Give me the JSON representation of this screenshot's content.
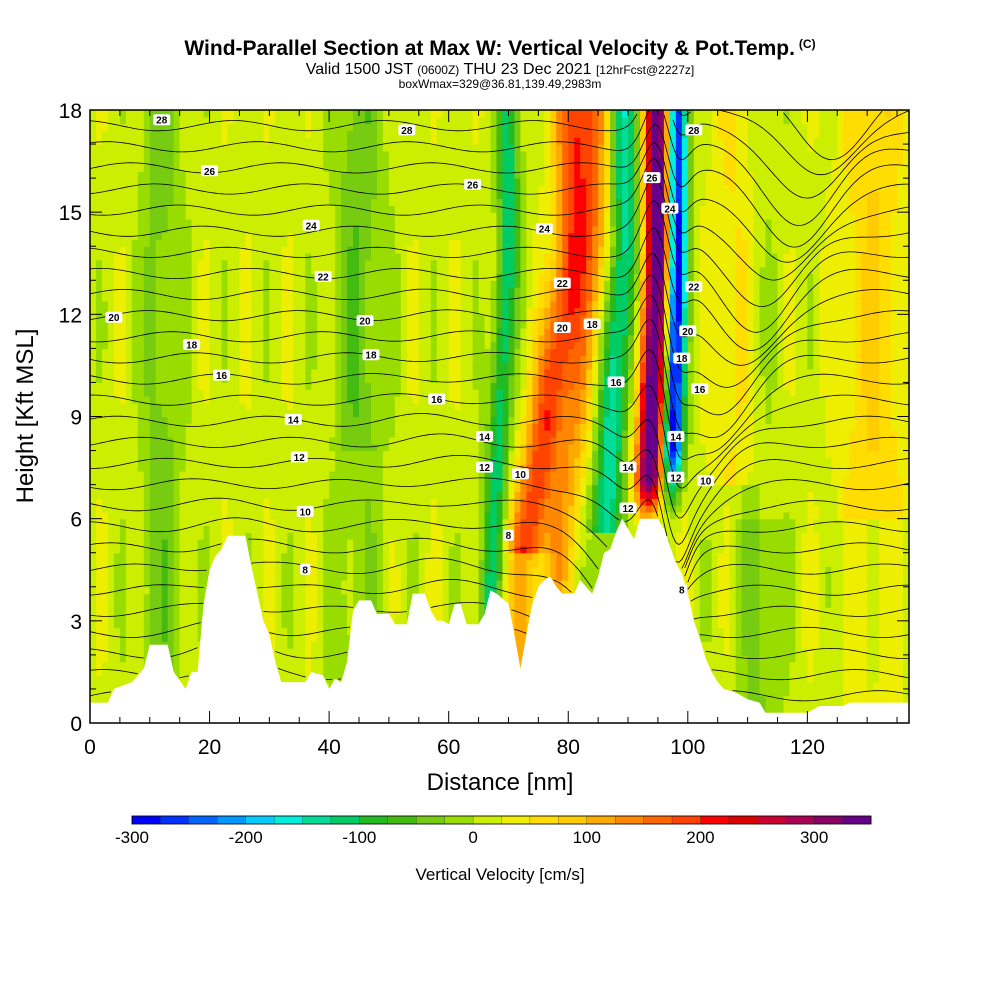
{
  "title": {
    "main": "Wind-Parallel Section at Max W: Vertical Velocity & Pot.Temp.",
    "units_tag": "(C)",
    "valid_prefix": "Valid 1500 JST",
    "valid_utc": "(0600Z)",
    "valid_date": "THU 23 Dec 2021",
    "forecast": "[12hrFcst@2227z]",
    "box": "boxWmax=329@36.81,139.49,2983m"
  },
  "chart_data": {
    "type": "heatmap",
    "xlabel": "Distance [nm]",
    "ylabel": "Height [Kft MSL]",
    "xlim": [
      0,
      137
    ],
    "ylim": [
      0,
      18
    ],
    "x_ticks": [
      0,
      20,
      40,
      60,
      80,
      100,
      120
    ],
    "y_ticks": [
      0,
      3,
      6,
      9,
      12,
      15,
      18
    ],
    "colorbar": {
      "label": "Vertical Velocity [cm/s]",
      "range": [
        -300,
        350
      ],
      "ticks": [
        -300,
        -200,
        -100,
        0,
        100,
        200,
        300
      ],
      "colors": [
        "#0000ff",
        "#0033ff",
        "#0066ff",
        "#0099ff",
        "#00ccff",
        "#00eedd",
        "#00dd99",
        "#00cc66",
        "#22bb22",
        "#44bb11",
        "#77cc11",
        "#99dd00",
        "#ccee00",
        "#eeee00",
        "#ffdd00",
        "#ffcc00",
        "#ffaa00",
        "#ff8800",
        "#ff6600",
        "#ff4400",
        "#ff0000",
        "#dd0000",
        "#cc0033",
        "#aa0055",
        "#880066",
        "#660088"
      ]
    },
    "theta_contour_labels": [
      {
        "x": 12,
        "y": 17.7,
        "text": "28"
      },
      {
        "x": 53,
        "y": 17.4,
        "text": "28"
      },
      {
        "x": 101,
        "y": 17.4,
        "text": "28"
      },
      {
        "x": 20,
        "y": 16.2,
        "text": "26"
      },
      {
        "x": 64,
        "y": 15.8,
        "text": "26"
      },
      {
        "x": 94,
        "y": 16.0,
        "text": "26"
      },
      {
        "x": 37,
        "y": 14.6,
        "text": "24"
      },
      {
        "x": 76,
        "y": 14.5,
        "text": "24"
      },
      {
        "x": 97,
        "y": 15.1,
        "text": "24"
      },
      {
        "x": 39,
        "y": 13.1,
        "text": "22"
      },
      {
        "x": 79,
        "y": 12.9,
        "text": "22"
      },
      {
        "x": 101,
        "y": 12.8,
        "text": "22"
      },
      {
        "x": 4,
        "y": 11.9,
        "text": "20"
      },
      {
        "x": 46,
        "y": 11.8,
        "text": "20"
      },
      {
        "x": 79,
        "y": 11.6,
        "text": "20"
      },
      {
        "x": 100,
        "y": 11.5,
        "text": "20"
      },
      {
        "x": 17,
        "y": 11.1,
        "text": "18"
      },
      {
        "x": 47,
        "y": 10.8,
        "text": "18"
      },
      {
        "x": 84,
        "y": 11.7,
        "text": "18"
      },
      {
        "x": 99,
        "y": 10.7,
        "text": "18"
      },
      {
        "x": 22,
        "y": 10.2,
        "text": "16"
      },
      {
        "x": 58,
        "y": 9.5,
        "text": "16"
      },
      {
        "x": 88,
        "y": 10.0,
        "text": "16"
      },
      {
        "x": 102,
        "y": 9.8,
        "text": "16"
      },
      {
        "x": 34,
        "y": 8.9,
        "text": "14"
      },
      {
        "x": 66,
        "y": 8.4,
        "text": "14"
      },
      {
        "x": 98,
        "y": 8.4,
        "text": "14"
      },
      {
        "x": 35,
        "y": 7.8,
        "text": "12"
      },
      {
        "x": 66,
        "y": 7.5,
        "text": "12"
      },
      {
        "x": 90,
        "y": 7.5,
        "text": "14"
      },
      {
        "x": 98,
        "y": 7.2,
        "text": "12"
      },
      {
        "x": 72,
        "y": 7.3,
        "text": "10"
      },
      {
        "x": 103,
        "y": 7.1,
        "text": "10"
      },
      {
        "x": 36,
        "y": 6.2,
        "text": "10"
      },
      {
        "x": 90,
        "y": 6.3,
        "text": "12"
      },
      {
        "x": 70,
        "y": 5.5,
        "text": "8"
      },
      {
        "x": 36,
        "y": 4.5,
        "text": "8"
      },
      {
        "x": 99,
        "y": 3.9,
        "text": "8"
      }
    ]
  }
}
